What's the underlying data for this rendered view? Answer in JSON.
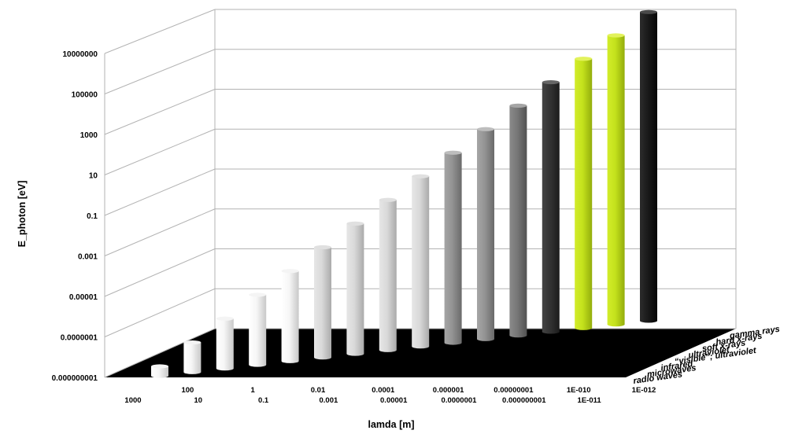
{
  "chart_data": {
    "type": "bar",
    "title": "",
    "xlabel": "lamda [m]",
    "ylabel": "E_photon [eV]",
    "y_scale": "log",
    "ylim": [
      1e-09,
      100000000.0
    ],
    "y_ticks": [
      "0.000000001",
      "0.0000001",
      "0.00001",
      "0.001",
      "0.1",
      "10",
      "1000",
      "100000",
      "10000000"
    ],
    "grid": true,
    "categories": [
      "1000",
      "100",
      "10",
      "1",
      "0.1",
      "0.01",
      "0.001",
      "0.0001",
      "0.00001",
      "0.000001",
      "0.0000001",
      "0.00000001",
      "0.000000001",
      "1E-010",
      "1E-011",
      "1E-012"
    ],
    "values": [
      1.2e-09,
      1.2e-08,
      1.2e-07,
      1.2e-06,
      1.2e-05,
      0.00012,
      0.0012,
      0.012,
      0.12,
      1.2,
      12,
      120,
      1200,
      12000,
      120000,
      1200000
    ],
    "series_depth_labels": [
      "radio waves",
      "microwaves",
      "infrared",
      "“visible”; ultraviolet",
      "ultraviolet",
      "soft x-rays",
      "hard x-rays",
      "gamma rays"
    ],
    "bar_band_index": [
      0,
      0,
      0,
      1,
      1,
      2,
      2,
      2,
      3,
      3,
      4,
      5,
      6,
      6,
      7,
      7
    ],
    "band_colors": [
      "#f2f2f2",
      "#d6d6d6",
      "#d2d2d2",
      "#8c8c8c",
      "#6e6e6e",
      "#2e2e2e",
      "#c2e01a",
      "#58a21e",
      "#101010"
    ]
  }
}
